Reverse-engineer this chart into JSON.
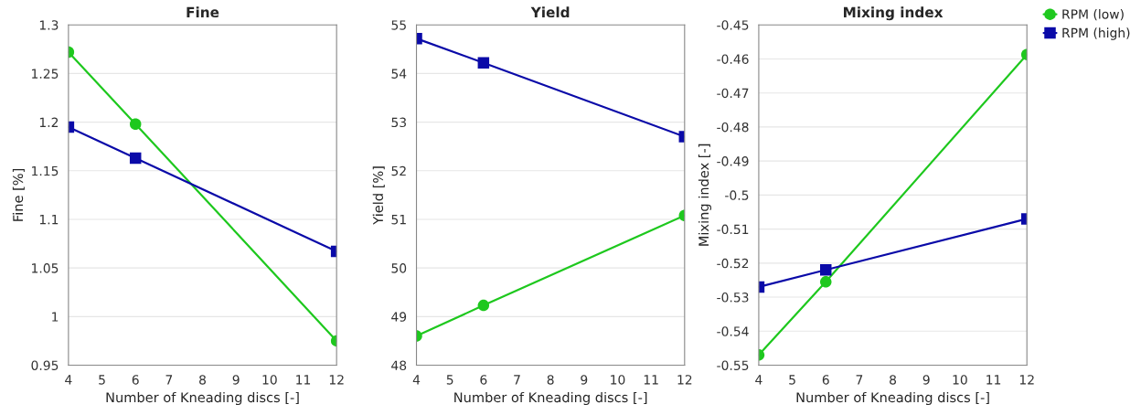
{
  "chart_data": [
    {
      "type": "line",
      "title": "Fine",
      "xlabel": "Number of Kneading discs [-]",
      "ylabel": "Fine [%]",
      "x": [
        4,
        6,
        12
      ],
      "xlim": [
        4,
        12
      ],
      "xticks": [
        4,
        5,
        6,
        7,
        8,
        9,
        10,
        11,
        12
      ],
      "ylim": [
        0.95,
        1.3
      ],
      "yticks": [
        0.95,
        1,
        1.05,
        1.1,
        1.15,
        1.2,
        1.25,
        1.3
      ],
      "grid": "y",
      "legend": false,
      "series": [
        {
          "color": "#1ec81e",
          "marker": "circle",
          "values": [
            1.272,
            1.198,
            0.975
          ]
        },
        {
          "color": "#0a0aa8",
          "marker": "square",
          "values": [
            1.195,
            1.163,
            1.067
          ]
        }
      ]
    },
    {
      "type": "line",
      "title": "Yield",
      "xlabel": "Number of Kneading discs [-]",
      "ylabel": "Yield [%]",
      "x": [
        4,
        6,
        12
      ],
      "xlim": [
        4,
        12
      ],
      "xticks": [
        4,
        5,
        6,
        7,
        8,
        9,
        10,
        11,
        12
      ],
      "ylim": [
        48,
        55
      ],
      "yticks": [
        48,
        49,
        50,
        51,
        52,
        53,
        54,
        55
      ],
      "grid": "y",
      "legend": false,
      "series": [
        {
          "color": "#1ec81e",
          "marker": "circle",
          "values": [
            48.6,
            49.23,
            51.08
          ]
        },
        {
          "color": "#0a0aa8",
          "marker": "square",
          "values": [
            54.72,
            54.22,
            52.7
          ]
        }
      ]
    },
    {
      "type": "line",
      "title": "Mixing index",
      "xlabel": "Number of Kneading discs [-]",
      "ylabel": "Mixing index [-]",
      "x": [
        4,
        6,
        12
      ],
      "xlim": [
        4,
        12
      ],
      "xticks": [
        4,
        5,
        6,
        7,
        8,
        9,
        10,
        11,
        12
      ],
      "ylim": [
        -0.55,
        -0.45
      ],
      "yticks": [
        -0.55,
        -0.54,
        -0.53,
        -0.52,
        -0.51,
        -0.5,
        -0.49,
        -0.48,
        -0.47,
        -0.46,
        -0.45
      ],
      "grid": "y",
      "legend": "top right",
      "series": [
        {
          "name": "RPM (low)",
          "color": "#1ec81e",
          "marker": "circle",
          "values": [
            -0.547,
            -0.5255,
            -0.4587
          ]
        },
        {
          "name": "RPM (high)",
          "color": "#0a0aa8",
          "marker": "square",
          "values": [
            -0.527,
            -0.522,
            -0.507
          ]
        }
      ]
    }
  ]
}
